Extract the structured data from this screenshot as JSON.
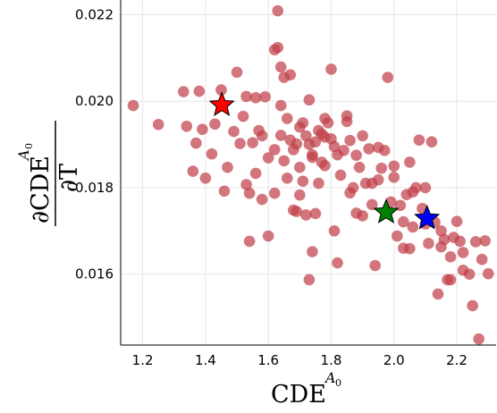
{
  "chart_data": {
    "type": "scatter",
    "xlabel": "CDE",
    "xlabel_sup": "A",
    "xlabel_sup_sub": "0",
    "ylabel_num": "∂CDE",
    "ylabel_num_sup": "A",
    "ylabel_num_sup_sub": "0",
    "ylabel_den": "∂T",
    "xlim": [
      1.13,
      2.325
    ],
    "ylim": [
      0.01436,
      0.02234
    ],
    "xticks": [
      1.2,
      1.4,
      1.6,
      1.8,
      2.0,
      2.2
    ],
    "xtick_labels": [
      "1.2",
      "1.4",
      "1.6",
      "1.8",
      "2.0",
      "2.2"
    ],
    "yticks": [
      0.016,
      0.018,
      0.02,
      0.022
    ],
    "ytick_labels": [
      "0.016",
      "0.018",
      "0.020",
      "0.022"
    ],
    "grid": true,
    "point_color": "#c0404a",
    "points": [
      [
        1.17,
        0.0199
      ],
      [
        1.25,
        0.01946
      ],
      [
        1.33,
        0.02022
      ],
      [
        1.38,
        0.02023
      ],
      [
        1.34,
        0.01942
      ],
      [
        1.37,
        0.01903
      ],
      [
        1.39,
        0.01935
      ],
      [
        1.36,
        0.01838
      ],
      [
        1.4,
        0.01822
      ],
      [
        1.42,
        0.01878
      ],
      [
        1.43,
        0.01947
      ],
      [
        1.45,
        0.02026
      ],
      [
        1.46,
        0.01792
      ],
      [
        1.47,
        0.01847
      ],
      [
        1.49,
        0.0193
      ],
      [
        1.5,
        0.02067
      ],
      [
        1.52,
        0.01965
      ],
      [
        1.53,
        0.02011
      ],
      [
        1.51,
        0.01902
      ],
      [
        1.55,
        0.01904
      ],
      [
        1.54,
        0.01787
      ],
      [
        1.53,
        0.01807
      ],
      [
        1.54,
        0.01676
      ],
      [
        1.56,
        0.01833
      ],
      [
        1.57,
        0.01932
      ],
      [
        1.59,
        0.0201
      ],
      [
        1.58,
        0.0192
      ],
      [
        1.6,
        0.01869
      ],
      [
        1.62,
        0.01888
      ],
      [
        1.63,
        0.02209
      ],
      [
        1.62,
        0.02119
      ],
      [
        1.64,
        0.02079
      ],
      [
        1.65,
        0.02055
      ],
      [
        1.64,
        0.0199
      ],
      [
        1.66,
        0.0196
      ],
      [
        1.67,
        0.0191
      ],
      [
        1.68,
        0.01888
      ],
      [
        1.69,
        0.01901
      ],
      [
        1.7,
        0.01847
      ],
      [
        1.71,
        0.0195
      ],
      [
        1.72,
        0.0192
      ],
      [
        1.73,
        0.019
      ],
      [
        1.74,
        0.01876
      ],
      [
        1.75,
        0.01906
      ],
      [
        1.76,
        0.01932
      ],
      [
        1.77,
        0.01859
      ],
      [
        1.78,
        0.01851
      ],
      [
        1.79,
        0.0195
      ],
      [
        1.8,
        0.01913
      ],
      [
        1.81,
        0.01895
      ],
      [
        1.6,
        0.01688
      ],
      [
        1.62,
        0.01787
      ],
      [
        1.64,
        0.01921
      ],
      [
        1.66,
        0.01822
      ],
      [
        1.68,
        0.01748
      ],
      [
        1.7,
        0.01783
      ],
      [
        1.72,
        0.01737
      ],
      [
        1.73,
        0.01587
      ],
      [
        1.74,
        0.01652
      ],
      [
        1.75,
        0.0174
      ],
      [
        1.76,
        0.0181
      ],
      [
        1.78,
        0.01917
      ],
      [
        1.8,
        0.02074
      ],
      [
        1.81,
        0.017
      ],
      [
        1.82,
        0.01626
      ],
      [
        1.83,
        0.01829
      ],
      [
        1.84,
        0.01886
      ],
      [
        1.85,
        0.01966
      ],
      [
        1.86,
        0.01909
      ],
      [
        1.87,
        0.018
      ],
      [
        1.88,
        0.01741
      ],
      [
        1.89,
        0.01847
      ],
      [
        1.9,
        0.0192
      ],
      [
        1.91,
        0.0181
      ],
      [
        1.92,
        0.0189
      ],
      [
        1.93,
        0.01761
      ],
      [
        1.94,
        0.0162
      ],
      [
        1.95,
        0.01818
      ],
      [
        1.96,
        0.01845
      ],
      [
        1.97,
        0.01886
      ],
      [
        1.98,
        0.02055
      ],
      [
        1.99,
        0.01767
      ],
      [
        2.0,
        0.0185
      ],
      [
        2.01,
        0.01688
      ],
      [
        2.02,
        0.01759
      ],
      [
        2.03,
        0.01721
      ],
      [
        2.04,
        0.01784
      ],
      [
        2.05,
        0.01659
      ],
      [
        2.06,
        0.01709
      ],
      [
        2.07,
        0.018
      ],
      [
        2.08,
        0.0191
      ],
      [
        2.09,
        0.01752
      ],
      [
        2.1,
        0.01716
      ],
      [
        2.11,
        0.01671
      ],
      [
        2.12,
        0.01906
      ],
      [
        2.13,
        0.0172
      ],
      [
        2.14,
        0.01554
      ],
      [
        2.15,
        0.01663
      ],
      [
        2.16,
        0.0168
      ],
      [
        2.17,
        0.01587
      ],
      [
        2.18,
        0.0164
      ],
      [
        2.19,
        0.01685
      ],
      [
        2.2,
        0.01722
      ],
      [
        2.21,
        0.01676
      ],
      [
        2.22,
        0.01609
      ],
      [
        2.24,
        0.016
      ],
      [
        2.25,
        0.01527
      ],
      [
        2.26,
        0.01675
      ],
      [
        2.27,
        0.0145
      ],
      [
        2.28,
        0.01634
      ],
      [
        2.29,
        0.01677
      ],
      [
        2.3,
        0.01601
      ],
      [
        1.56,
        0.02008
      ],
      [
        1.63,
        0.02124
      ],
      [
        1.67,
        0.02061
      ],
      [
        1.7,
        0.0194
      ],
      [
        1.73,
        0.02003
      ],
      [
        1.78,
        0.0196
      ],
      [
        1.85,
        0.01953
      ],
      [
        1.88,
        0.01875
      ],
      [
        1.95,
        0.01893
      ],
      [
        2.05,
        0.01859
      ],
      [
        2.1,
        0.018
      ],
      [
        1.69,
        0.01745
      ],
      [
        1.74,
        0.0187
      ],
      [
        1.86,
        0.01788
      ],
      [
        1.9,
        0.01735
      ],
      [
        2.0,
        0.01824
      ],
      [
        2.06,
        0.0179
      ],
      [
        2.15,
        0.017
      ],
      [
        2.22,
        0.0165
      ],
      [
        1.58,
        0.01773
      ],
      [
        1.65,
        0.01862
      ],
      [
        1.71,
        0.01815
      ],
      [
        1.77,
        0.01924
      ],
      [
        1.82,
        0.01876
      ],
      [
        1.93,
        0.0181
      ],
      [
        2.03,
        0.0166
      ],
      [
        2.18,
        0.01587
      ]
    ],
    "markers": [
      {
        "shape": "star",
        "x": 1.452,
        "y": 0.01991,
        "color": "#ff0000"
      },
      {
        "shape": "star",
        "x": 1.975,
        "y": 0.01743,
        "color": "#008000"
      },
      {
        "shape": "star",
        "x": 2.105,
        "y": 0.01729,
        "color": "#0000ff"
      }
    ]
  }
}
